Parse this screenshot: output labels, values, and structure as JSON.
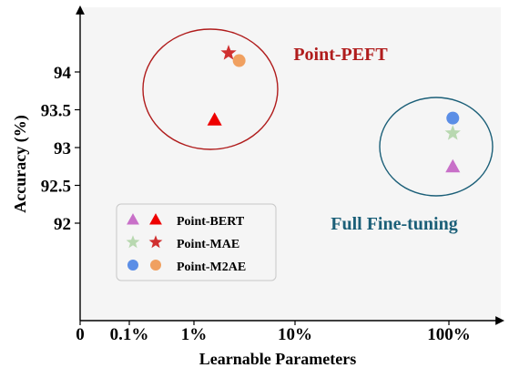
{
  "chart_data": {
    "type": "scatter",
    "title": "",
    "xlabel": "Learnable Parameters",
    "ylabel": "Accuracy (%)",
    "x_ticks": [
      "0",
      "0.1%",
      "1%",
      "10%",
      "100%"
    ],
    "y_ticks": [
      "92",
      "92.5",
      "93",
      "93.5",
      "94"
    ],
    "ylim": [
      90.5,
      94.9
    ],
    "grid": false,
    "legend_position": "lower-left",
    "series": [
      {
        "name": "Point-BERT",
        "marker": "triangle",
        "points": [
          {
            "x": "1.6%",
            "y": 93.37,
            "group": "Point-PEFT"
          },
          {
            "x": "106%",
            "y": 92.75,
            "group": "Full Fine-tuning"
          }
        ]
      },
      {
        "name": "Point-MAE",
        "marker": "star",
        "points": [
          {
            "x": "2.2%",
            "y": 94.25,
            "group": "Point-PEFT"
          },
          {
            "x": "106%",
            "y": 93.19,
            "group": "Full Fine-tuning"
          }
        ]
      },
      {
        "name": "Point-M2AE",
        "marker": "circle",
        "points": [
          {
            "x": "2.8%",
            "y": 94.15,
            "group": "Point-PEFT"
          },
          {
            "x": "106%",
            "y": 93.39,
            "group": "Full Fine-tuning"
          }
        ]
      }
    ],
    "groups": [
      {
        "label": "Point-PEFT",
        "color": "#b01c1c"
      },
      {
        "label": "Full Fine-tuning",
        "color": "#1b5f78"
      }
    ],
    "colors": {
      "Point-BERT": {
        "full": "#c870c8",
        "peft": "#ee0000"
      },
      "Point-MAE": {
        "full": "#b8d8b0",
        "peft": "#d03030"
      },
      "Point-M2AE": {
        "full": "#5b8ee6",
        "peft": "#f0a060"
      },
      "plot_background": "#f5f5f5"
    }
  }
}
